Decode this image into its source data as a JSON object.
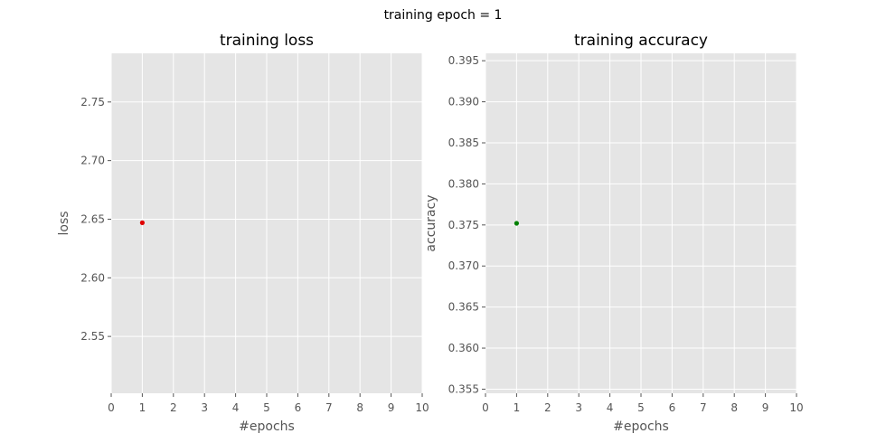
{
  "figure_title": "training epoch = 1",
  "chart_data": [
    {
      "type": "scatter",
      "title": "training loss",
      "xlabel": "#epochs",
      "ylabel": "loss",
      "xlim": [
        0,
        10
      ],
      "ylim": [
        2.5015,
        2.7915
      ],
      "xticks": [
        0,
        1,
        2,
        3,
        4,
        5,
        6,
        7,
        8,
        9,
        10
      ],
      "yticks": [
        2.55,
        2.6,
        2.65,
        2.7,
        2.75
      ],
      "ytick_labels": [
        "2.55",
        "2.60",
        "2.65",
        "2.70",
        "2.75"
      ],
      "grid": true,
      "series": [
        {
          "x": [
            1
          ],
          "y": [
            2.647
          ],
          "color": "#e00000"
        }
      ]
    },
    {
      "type": "scatter",
      "title": "training accuracy",
      "xlabel": "#epochs",
      "ylabel": "accuracy",
      "xlim": [
        0,
        10
      ],
      "ylim": [
        0.3545,
        0.3959
      ],
      "xticks": [
        0,
        1,
        2,
        3,
        4,
        5,
        6,
        7,
        8,
        9,
        10
      ],
      "yticks": [
        0.355,
        0.36,
        0.365,
        0.37,
        0.375,
        0.38,
        0.385,
        0.39,
        0.395
      ],
      "ytick_labels": [
        "0.355",
        "0.360",
        "0.365",
        "0.370",
        "0.375",
        "0.380",
        "0.385",
        "0.390",
        "0.395"
      ],
      "grid": true,
      "series": [
        {
          "x": [
            1
          ],
          "y": [
            0.3752
          ],
          "color": "#008000"
        }
      ]
    }
  ]
}
